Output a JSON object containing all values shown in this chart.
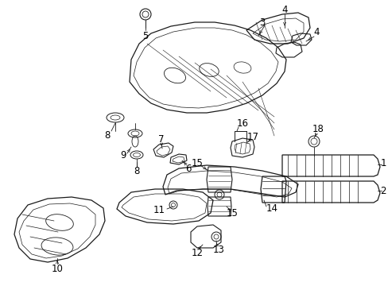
{
  "bg_color": "#ffffff",
  "line_color": "#1a1a1a",
  "label_color": "#000000",
  "font_size": 8.5,
  "figsize": [
    4.89,
    3.6
  ],
  "dpi": 100
}
